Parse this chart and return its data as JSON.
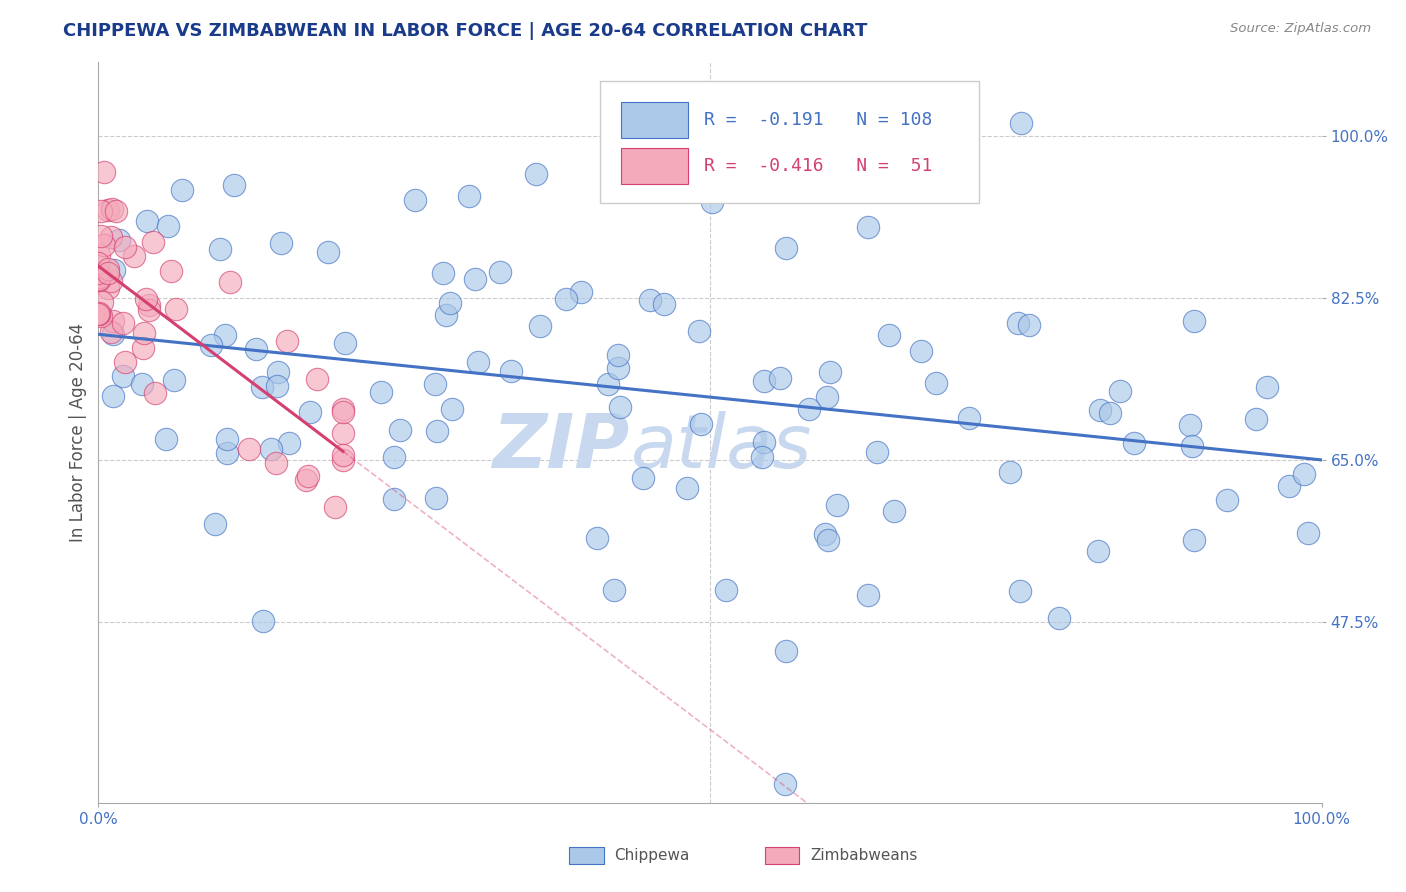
{
  "title": "CHIPPEWA VS ZIMBABWEAN IN LABOR FORCE | AGE 20-64 CORRELATION CHART",
  "source_text": "Source: ZipAtlas.com",
  "ylabel": "In Labor Force | Age 20-64",
  "xlim": [
    0.0,
    1.0
  ],
  "ylim": [
    0.28,
    1.08
  ],
  "yticks": [
    0.475,
    0.65,
    0.825,
    1.0
  ],
  "legend_r_chippewa": "-0.191",
  "legend_n_chippewa": "108",
  "legend_r_zimbabwean": "-0.416",
  "legend_n_zimbabwean": "51",
  "chippewa_color": "#aac8e8",
  "zimbabwean_color": "#f4aabb",
  "chippewa_line_color": "#4472c4",
  "zimbabwean_line_color": "#d44070",
  "background_color": "#ffffff",
  "watermark_zip": "ZIP",
  "watermark_atlas": "atlas",
  "watermark_color": "#c8d8ee",
  "grid_color": "#cccccc",
  "title_color": "#1a3a8a",
  "axis_label_color": "#555555",
  "tick_color": "#4472c4",
  "legend_text_color_blue": "#4472c4",
  "legend_text_color_pink": "#d44070",
  "source_color": "#888888"
}
